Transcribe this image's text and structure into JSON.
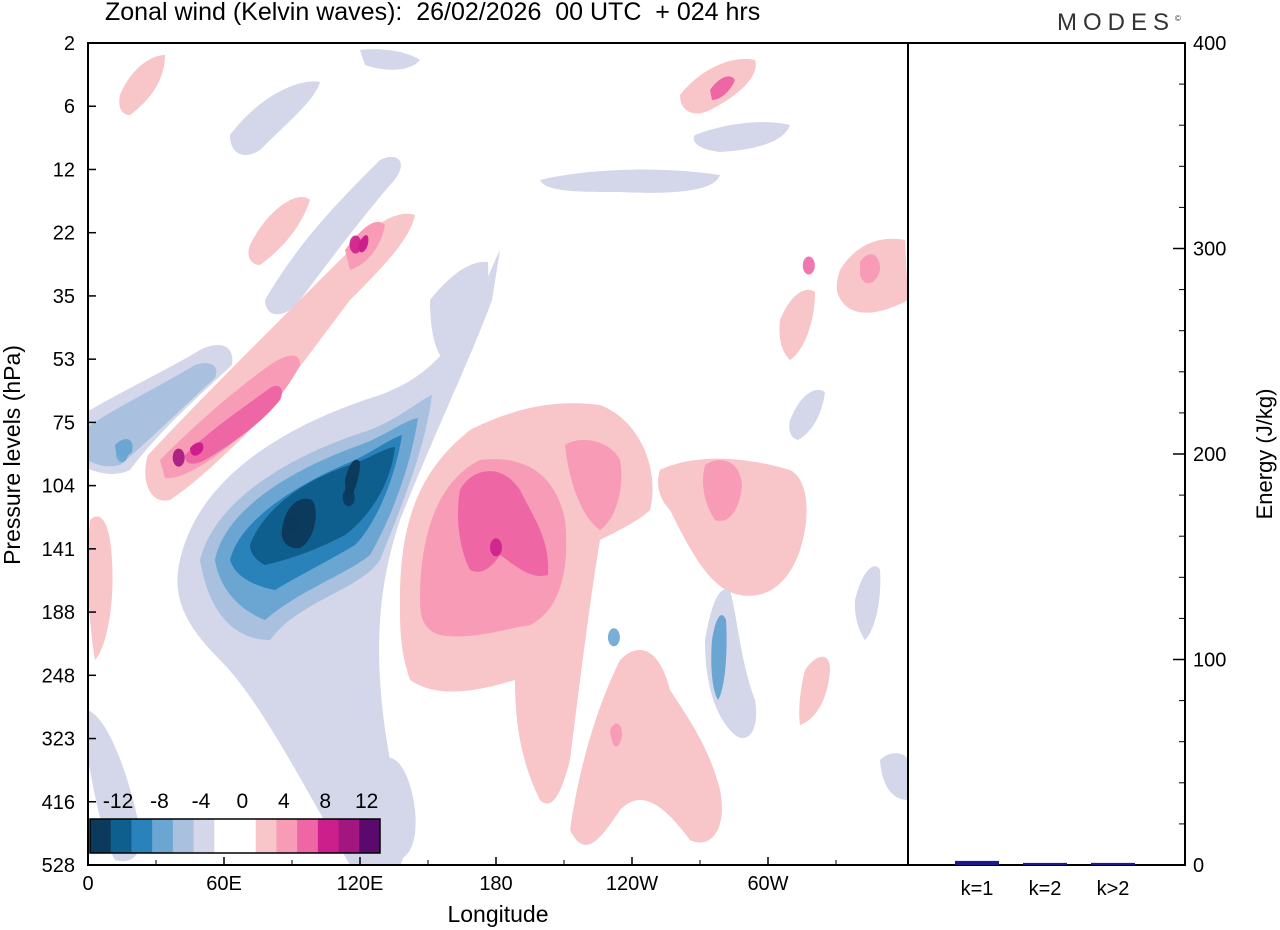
{
  "header": {
    "title": "Zonal wind (Kelvin waves):  26/02/2026  00 UTC  + 024 hrs",
    "brand": "MODES",
    "brand_mark": "©"
  },
  "chart_data": [
    {
      "type": "heatmap",
      "title": "Zonal wind (Kelvin waves):  26/02/2026  00 UTC  + 024 hrs",
      "xlabel": "Longitude",
      "ylabel": "Pressure levels (hPa)",
      "x_ticks": [
        "0",
        "60E",
        "120E",
        "180",
        "120W",
        "60W"
      ],
      "y_ticks": [
        "2",
        "6",
        "12",
        "22",
        "35",
        "53",
        "75",
        "104",
        "141",
        "188",
        "248",
        "323",
        "416",
        "528"
      ],
      "colorbar": {
        "labels": [
          "-12",
          "-8",
          "-4",
          "0",
          "4",
          "8",
          "12"
        ],
        "colors": [
          "#0b3a5c",
          "#0e5e8e",
          "#2a82ba",
          "#6aa6d1",
          "#a9c0de",
          "#d4d6ea",
          "#ffffff",
          "#ffffff",
          "#f8c5c8",
          "#f79bb6",
          "#ef66a5",
          "#cc1f8c",
          "#a3157f",
          "#5a0a6c"
        ]
      },
      "features": [
        {
          "name": "strong-negative-core",
          "lon": 90,
          "p": 125,
          "value": -14
        },
        {
          "name": "negative-core-east",
          "lon": 115,
          "p": 110,
          "value": -12
        },
        {
          "name": "negative-wing-west",
          "lon": 15,
          "p": 88,
          "value": -6
        },
        {
          "name": "positive-tilted-jet",
          "lon": 40,
          "p": 90,
          "value": 10
        },
        {
          "name": "positive-core-stratosphere",
          "lon": 118,
          "p": 24,
          "value": 8
        },
        {
          "name": "positive-broad-upper",
          "lon": 180,
          "p": 140,
          "value": 8
        },
        {
          "name": "negative-spot",
          "lon": 232,
          "p": 210,
          "value": -6
        },
        {
          "name": "positive-east",
          "lon": 318,
          "p": 28,
          "value": 6
        }
      ]
    },
    {
      "type": "bar",
      "categories": [
        "k=1",
        "k=2",
        "k>2"
      ],
      "values": [
        2,
        1,
        1
      ],
      "ylabel": "Energy (J/kg)",
      "ylim": [
        0,
        400
      ],
      "y_ticks": [
        "0",
        "100",
        "200",
        "300",
        "400"
      ],
      "bar_color": "#1a1a8c"
    }
  ]
}
